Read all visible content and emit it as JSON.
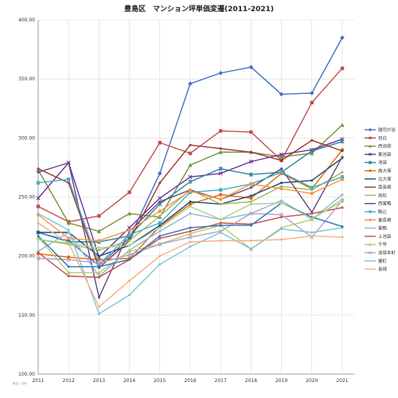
{
  "chart_data": {
    "type": "line",
    "title": "豊島区　マンション坪単価変遷(2011-2021)",
    "note": "単位：万円",
    "xlabel": "",
    "ylabel": "",
    "ylim": [
      100,
      400
    ],
    "yticks": [
      "100.00",
      "150.00",
      "200.00",
      "250.00",
      "300.00",
      "350.00",
      "400.00"
    ],
    "grid": true,
    "legend_position": "right",
    "categories": [
      "2011",
      "2012",
      "2013",
      "2014",
      "2015",
      "2016",
      "2017",
      "2018",
      "2019",
      "2020",
      "2021"
    ],
    "series": [
      {
        "name": "雑司が谷",
        "color": "#4472c4",
        "marker": "diamond",
        "values": [
          220,
          213,
          192,
          215,
          270,
          346,
          355,
          360,
          337,
          338,
          385
        ]
      },
      {
        "name": "目白",
        "color": "#c0504d",
        "marker": "square",
        "values": [
          242,
          229,
          234,
          254,
          296,
          287,
          306,
          305,
          281,
          330,
          359
        ]
      },
      {
        "name": "西池袋",
        "color": "#76923c",
        "marker": "triangle",
        "values": [
          273,
          228,
          221,
          236,
          233,
          277,
          288,
          288,
          284,
          287,
          311
        ]
      },
      {
        "name": "東池袋",
        "color": "#7030a0",
        "marker": "x",
        "values": [
          249,
          279,
          199,
          224,
          249,
          267,
          270,
          280,
          286,
          290,
          299
        ]
      },
      {
        "name": "池袋",
        "color": "#31859c",
        "marker": "asterisk",
        "values": [
          220,
          212,
          212,
          217,
          244,
          263,
          274,
          269,
          271,
          289,
          297
        ]
      },
      {
        "name": "南大塚",
        "color": "#e26b0a",
        "marker": "circle",
        "values": [
          202,
          199,
          197,
          198,
          225,
          244,
          252,
          249,
          270,
          257,
          290
        ]
      },
      {
        "name": "北大塚",
        "color": "#1f497d",
        "marker": "none",
        "values": [
          220,
          220,
          200,
          209,
          226,
          246,
          244,
          251,
          262,
          264,
          283
        ]
      },
      {
        "name": "南長崎",
        "color": "#9b3430",
        "marker": "none",
        "values": [
          274,
          262,
          190,
          213,
          262,
          294,
          291,
          288,
          281,
          298,
          289
        ]
      },
      {
        "name": "高松",
        "color": "#9bbb59",
        "marker": "none",
        "values": [
          214,
          210,
          205,
          213,
          234,
          256,
          244,
          246,
          259,
          256,
          271
        ]
      },
      {
        "name": "西巣鴨",
        "color": "#604a7b",
        "marker": "none",
        "values": [
          271,
          279,
          165,
          221,
          246,
          256,
          248,
          258,
          274,
          237,
          284
        ]
      },
      {
        "name": "駒込",
        "color": "#4bacc6",
        "marker": "square",
        "values": [
          262,
          265,
          193,
          218,
          228,
          254,
          256,
          261,
          271,
          258,
          267
        ]
      },
      {
        "name": "東長崎",
        "color": "#f79646",
        "marker": "circle",
        "values": [
          235,
          215,
          213,
          222,
          238,
          255,
          248,
          261,
          257,
          253,
          265
        ]
      },
      {
        "name": "巣鴨",
        "color": "#95b3d7",
        "marker": "none",
        "values": [
          204,
          220,
          183,
          205,
          221,
          236,
          231,
          236,
          247,
          231,
          252
        ]
      },
      {
        "name": "上池袋",
        "color": "#c0504d",
        "marker": "none",
        "values": [
          203,
          183,
          182,
          197,
          215,
          221,
          228,
          227,
          233,
          236,
          241
        ]
      },
      {
        "name": "千早",
        "color": "#b8cc6e",
        "marker": "triangle",
        "values": [
          216,
          186,
          186,
          204,
          210,
          219,
          226,
          206,
          224,
          231,
          248
        ]
      },
      {
        "name": "池袋本町",
        "color": "#b3a2c7",
        "marker": "x",
        "values": [
          198,
          197,
          194,
          201,
          210,
          216,
          221,
          236,
          235,
          216,
          247
        ]
      },
      {
        "name": "要町",
        "color": "#7fc4d4",
        "marker": "none",
        "values": [
          236,
          222,
          151,
          167,
          193,
          208,
          220,
          206,
          223,
          220,
          224
        ]
      },
      {
        "name": "長崎",
        "color": "#f4b183",
        "marker": "none",
        "values": [
          228,
          211,
          157,
          179,
          200,
          212,
          213,
          213,
          214,
          217,
          216
        ]
      },
      {
        "name": "",
        "color": "#2e75b6",
        "marker": "none",
        "values": [
          217,
          191,
          191,
          197,
          217,
          224,
          226,
          226,
          245,
          233,
          225
        ]
      },
      {
        "name": "",
        "color": "#a9d18e",
        "marker": "none",
        "values": [
          214,
          211,
          207,
          209,
          224,
          242,
          231,
          244,
          245,
          232,
          246
        ]
      }
    ]
  }
}
